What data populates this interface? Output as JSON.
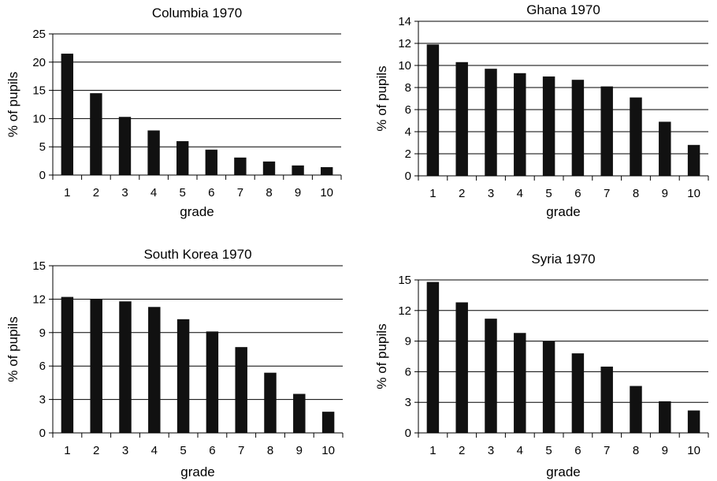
{
  "chart_data": [
    {
      "type": "bar",
      "title": "Columbia 1970",
      "xlabel": "grade",
      "ylabel": "% of pupils",
      "categories": [
        "1",
        "2",
        "3",
        "4",
        "5",
        "6",
        "7",
        "8",
        "9",
        "10"
      ],
      "values": [
        21.5,
        14.5,
        10.3,
        7.9,
        6.0,
        4.5,
        3.1,
        2.4,
        1.7,
        1.4
      ],
      "ylim": [
        0,
        25
      ],
      "yticks": [
        "0",
        "5",
        "10",
        "15",
        "20",
        "25"
      ],
      "grid": true,
      "bar_color": "#111111"
    },
    {
      "type": "bar",
      "title": "Ghana 1970",
      "xlabel": "grade",
      "ylabel": "% of pupils",
      "categories": [
        "1",
        "2",
        "3",
        "4",
        "5",
        "6",
        "7",
        "8",
        "9",
        "10"
      ],
      "values": [
        11.9,
        10.3,
        9.7,
        9.3,
        9.0,
        8.7,
        8.1,
        7.1,
        4.9,
        2.8
      ],
      "ylim": [
        0,
        14
      ],
      "yticks": [
        "0",
        "2",
        "4",
        "6",
        "8",
        "10",
        "12",
        "14"
      ],
      "grid": true,
      "bar_color": "#111111"
    },
    {
      "type": "bar",
      "title": "South Korea 1970",
      "xlabel": "grade",
      "ylabel": "% of pupils",
      "categories": [
        "1",
        "2",
        "3",
        "4",
        "5",
        "6",
        "7",
        "8",
        "9",
        "10"
      ],
      "values": [
        12.2,
        12.0,
        11.8,
        11.3,
        10.2,
        9.1,
        7.7,
        5.4,
        3.5,
        1.9
      ],
      "ylim": [
        0,
        15
      ],
      "yticks": [
        "0",
        "3",
        "6",
        "9",
        "12",
        "15"
      ],
      "grid": true,
      "bar_color": "#111111"
    },
    {
      "type": "bar",
      "title": "Syria 1970",
      "xlabel": "grade",
      "ylabel": "% of pupils",
      "categories": [
        "1",
        "2",
        "3",
        "4",
        "5",
        "6",
        "7",
        "8",
        "9",
        "10"
      ],
      "values": [
        14.8,
        12.8,
        11.2,
        9.8,
        9.0,
        7.8,
        6.5,
        4.6,
        3.1,
        2.2
      ],
      "ylim": [
        0,
        15
      ],
      "yticks": [
        "0",
        "3",
        "6",
        "9",
        "12",
        "15"
      ],
      "grid": true,
      "bar_color": "#111111"
    }
  ]
}
